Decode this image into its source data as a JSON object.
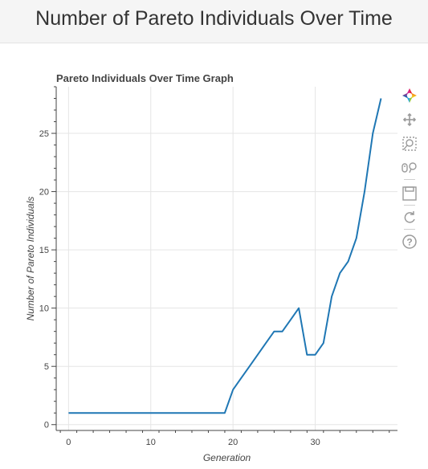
{
  "page": {
    "title": "Number of Pareto Individuals Over Time"
  },
  "colors": {
    "line": "#1f77b4",
    "axis": "#444444",
    "grid": "#e5e5e5",
    "header_bg": "#f5f5f5"
  },
  "toolbar": {
    "tools": [
      {
        "name": "bokeh-logo-icon"
      },
      {
        "name": "pan-icon"
      },
      {
        "name": "box-zoom-icon"
      },
      {
        "name": "wheel-zoom-icon"
      },
      {
        "name": "save-icon"
      },
      {
        "name": "reset-icon"
      },
      {
        "name": "help-icon"
      }
    ]
  },
  "chart_data": {
    "type": "line",
    "title": "Pareto Individuals Over Time Graph",
    "xlabel": "Generation",
    "ylabel": "Number of Pareto Individuals",
    "xlim": [
      -1.5,
      40
    ],
    "ylim": [
      -0.5,
      29
    ],
    "xticks": [
      0,
      10,
      20,
      30
    ],
    "yticks": [
      0,
      5,
      10,
      15,
      20,
      25
    ],
    "grid": true,
    "series": [
      {
        "color": "#1f77b4",
        "x": [
          0,
          1,
          2,
          3,
          4,
          5,
          6,
          7,
          8,
          9,
          10,
          11,
          12,
          13,
          14,
          15,
          16,
          17,
          18,
          19,
          20,
          21,
          22,
          23,
          24,
          25,
          26,
          27,
          28,
          29,
          30,
          31,
          32,
          33,
          34,
          35,
          36,
          37,
          38
        ],
        "y": [
          1,
          1,
          1,
          1,
          1,
          1,
          1,
          1,
          1,
          1,
          1,
          1,
          1,
          1,
          1,
          1,
          1,
          1,
          1,
          1,
          3,
          4,
          5,
          6,
          7,
          8,
          8,
          9,
          10,
          6,
          6,
          7,
          11,
          13,
          14,
          16,
          20,
          25,
          28
        ]
      }
    ]
  }
}
